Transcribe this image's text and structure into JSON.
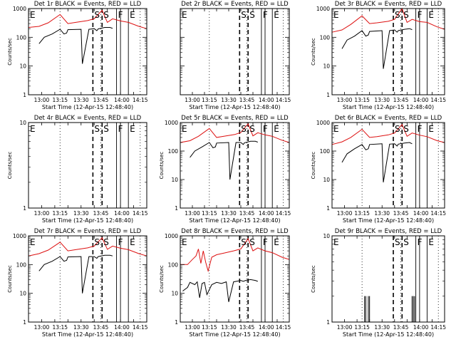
{
  "colors": {
    "background": "#ffffff",
    "axes": "#000000",
    "events": "#000000",
    "lld": "#dd1111",
    "text": "#000000"
  },
  "chart_data": [
    {
      "type": "line",
      "yscale": "log",
      "ylim": [
        1,
        1000
      ],
      "xlim": [
        0,
        90
      ],
      "title": "Det 1r BLACK = Events, RED = LLD",
      "xlabel": "Start Time (12-Apr-15 12:48:40)",
      "ylabel": "Counts/sec",
      "xtick_labels": [
        "13:00",
        "13:15",
        "13:30",
        "13:45",
        "14:00",
        "14:15"
      ],
      "ytick_labels": [
        "1",
        "10",
        "100",
        "1000"
      ],
      "markers": [
        "E",
        "S",
        "S",
        "F",
        "E"
      ],
      "series": [
        {
          "label_role": "LLD",
          "color": "#dd1111",
          "x": [
            0,
            8,
            15,
            24,
            30,
            36,
            45,
            50,
            56,
            60,
            64,
            70,
            76,
            84,
            90
          ],
          "y": [
            220,
            240,
            320,
            620,
            300,
            330,
            380,
            440,
            870,
            330,
            440,
            370,
            330,
            240,
            200
          ]
        },
        {
          "label_role": "Events",
          "color": "#000000",
          "x": [
            8,
            12,
            18,
            24,
            27,
            29,
            30,
            40,
            41,
            46,
            50,
            52,
            53,
            58,
            62,
            64
          ],
          "y": [
            60,
            100,
            130,
            190,
            130,
            140,
            185,
            190,
            12,
            190,
            200,
            170,
            195,
            220,
            220,
            205
          ]
        }
      ]
    },
    {
      "type": "line",
      "yscale": "log",
      "ylim": [
        1,
        1000
      ],
      "xlim": [
        0,
        90
      ],
      "title": "Det 2r BLACK = Events, RED = LLD",
      "xlabel": "Start Time (12-Apr-15 12:48:40)",
      "ylabel": "",
      "xtick_labels": [
        "13:00",
        "13:15",
        "13:30",
        "13:45",
        "14:00",
        "14:15"
      ],
      "ytick_labels": [],
      "markers": [
        "E",
        "S",
        "S",
        "F",
        "E"
      ],
      "series": []
    },
    {
      "type": "line",
      "yscale": "log",
      "ylim": [
        1,
        1000
      ],
      "xlim": [
        0,
        90
      ],
      "title": "Det 3r BLACK = Events, RED = LLD",
      "xlabel": "Start Time (12-Apr-15 12:48:40)",
      "ylabel": "Counts/sec",
      "xtick_labels": [
        "13:00",
        "13:15",
        "13:30",
        "13:45",
        "14:00",
        "14:15"
      ],
      "ytick_labels": [
        "1",
        "10",
        "100",
        "1000"
      ],
      "markers": [
        "E",
        "S",
        "S",
        "F",
        "E"
      ],
      "series": [
        {
          "label_role": "LLD",
          "color": "#dd1111",
          "x": [
            0,
            8,
            15,
            24,
            30,
            36,
            45,
            50,
            56,
            60,
            64,
            70,
            76,
            84,
            90
          ],
          "y": [
            150,
            180,
            280,
            560,
            300,
            320,
            360,
            420,
            1000,
            330,
            420,
            350,
            330,
            230,
            190
          ]
        },
        {
          "label_role": "Events",
          "color": "#000000",
          "x": [
            8,
            12,
            18,
            24,
            27,
            29,
            30,
            40,
            41,
            46,
            50,
            52,
            53,
            58,
            62,
            64
          ],
          "y": [
            40,
            80,
            110,
            170,
            110,
            120,
            160,
            170,
            8,
            170,
            180,
            150,
            170,
            190,
            200,
            185
          ]
        }
      ]
    },
    {
      "type": "line",
      "yscale": "log",
      "ylim": [
        1,
        10
      ],
      "xlim": [
        0,
        90
      ],
      "title": "Det 4r BLACK = Events, RED = LLD",
      "xlabel": "Start Time (12-Apr-15 12:48:40)",
      "ylabel": "Counts/sec",
      "xtick_labels": [
        "13:00",
        "13:15",
        "13:30",
        "13:45",
        "14:00",
        "14:15"
      ],
      "ytick_labels": [
        "1",
        "10"
      ],
      "markers": [
        "E",
        "S",
        "S",
        "F",
        "E"
      ],
      "series": []
    },
    {
      "type": "line",
      "yscale": "log",
      "ylim": [
        1,
        1000
      ],
      "xlim": [
        0,
        90
      ],
      "title": "Det 5r BLACK = Events, RED = LLD",
      "xlabel": "Start Time (12-Apr-15 12:48:40)",
      "ylabel": "Counts/sec",
      "xtick_labels": [
        "13:00",
        "13:15",
        "13:30",
        "13:45",
        "14:00",
        "14:15"
      ],
      "ytick_labels": [
        "1",
        "10",
        "100",
        "1000"
      ],
      "markers": [
        "E",
        "S",
        "S",
        "F",
        "E"
      ],
      "series": [
        {
          "label_role": "LLD",
          "color": "#dd1111",
          "x": [
            0,
            8,
            15,
            24,
            30,
            36,
            45,
            50,
            56,
            60,
            64,
            70,
            76,
            84,
            90
          ],
          "y": [
            200,
            230,
            330,
            620,
            300,
            330,
            380,
            450,
            900,
            340,
            440,
            370,
            330,
            240,
            200
          ]
        },
        {
          "label_role": "Events",
          "color": "#000000",
          "x": [
            8,
            12,
            18,
            24,
            27,
            29,
            30,
            40,
            41,
            46,
            50,
            52,
            53,
            58,
            62,
            64
          ],
          "y": [
            60,
            100,
            140,
            200,
            130,
            140,
            190,
            200,
            10,
            200,
            200,
            170,
            195,
            220,
            220,
            205
          ]
        }
      ]
    },
    {
      "type": "line",
      "yscale": "log",
      "ylim": [
        1,
        1000
      ],
      "xlim": [
        0,
        90
      ],
      "title": "Det 6r BLACK = Events, RED = LLD",
      "xlabel": "Start Time (12-Apr-15 12:48:40)",
      "ylabel": "Counts/sec",
      "xtick_labels": [
        "13:00",
        "13:15",
        "13:30",
        "13:45",
        "14:00",
        "14:15"
      ],
      "ytick_labels": [
        "1",
        "10",
        "100",
        "1000"
      ],
      "markers": [
        "E",
        "S",
        "S",
        "F",
        "E"
      ],
      "series": [
        {
          "label_role": "LLD",
          "color": "#dd1111",
          "x": [
            0,
            8,
            15,
            24,
            30,
            36,
            45,
            50,
            56,
            60,
            64,
            70,
            76,
            84,
            90
          ],
          "y": [
            170,
            210,
            300,
            580,
            300,
            320,
            370,
            430,
            850,
            330,
            430,
            360,
            320,
            230,
            200
          ]
        },
        {
          "label_role": "Events",
          "color": "#000000",
          "x": [
            8,
            12,
            18,
            24,
            27,
            29,
            30,
            40,
            41,
            46,
            50,
            52,
            53,
            58,
            62,
            64
          ],
          "y": [
            40,
            80,
            120,
            170,
            110,
            120,
            170,
            180,
            8,
            175,
            180,
            150,
            175,
            190,
            200,
            180
          ]
        }
      ]
    },
    {
      "type": "line",
      "yscale": "log",
      "ylim": [
        1,
        1000
      ],
      "xlim": [
        0,
        90
      ],
      "title": "Det 7r BLACK = Events, RED = LLD",
      "xlabel": "Start Time (12-Apr-15 12:48:40)",
      "ylabel": "Counts/sec",
      "xtick_labels": [
        "13:00",
        "13:15",
        "13:30",
        "13:45",
        "14:00",
        "14:15"
      ],
      "ytick_labels": [
        "1",
        "10",
        "100",
        "1000"
      ],
      "markers": [
        "E",
        "S",
        "S",
        "F",
        "E"
      ],
      "series": [
        {
          "label_role": "LLD",
          "color": "#dd1111",
          "x": [
            0,
            8,
            15,
            24,
            30,
            36,
            45,
            50,
            56,
            60,
            64,
            70,
            76,
            84,
            90
          ],
          "y": [
            200,
            240,
            320,
            600,
            300,
            330,
            380,
            440,
            850,
            340,
            440,
            370,
            330,
            240,
            200
          ]
        },
        {
          "label_role": "Events",
          "color": "#000000",
          "x": [
            8,
            12,
            18,
            24,
            27,
            29,
            30,
            40,
            41,
            46,
            50,
            52,
            53,
            58,
            62,
            64
          ],
          "y": [
            60,
            100,
            130,
            190,
            130,
            140,
            185,
            190,
            10,
            190,
            190,
            165,
            190,
            210,
            210,
            200
          ]
        }
      ]
    },
    {
      "type": "line",
      "yscale": "log",
      "ylim": [
        1,
        1000
      ],
      "xlim": [
        0,
        90
      ],
      "title": "Det 8r BLACK = Events, RED = LLD",
      "xlabel": "Start Time (12-Apr-15 12:48:40)",
      "ylabel": "Counts/sec",
      "xtick_labels": [
        "13:00",
        "13:15",
        "13:30",
        "13:45",
        "14:00",
        "14:15"
      ],
      "ytick_labels": [
        "1",
        "10",
        "100",
        "1000"
      ],
      "markers": [
        "E",
        "S",
        "S",
        "F",
        "E"
      ],
      "series": [
        {
          "label_role": "LLD",
          "color": "#dd1111",
          "x": [
            0,
            6,
            10,
            13,
            15,
            17,
            19,
            21,
            23,
            26,
            30,
            36,
            44,
            50,
            56,
            60,
            64,
            70,
            76,
            84,
            90
          ],
          "y": [
            100,
            100,
            150,
            200,
            350,
            110,
            300,
            120,
            60,
            180,
            220,
            250,
            300,
            350,
            800,
            300,
            380,
            300,
            260,
            180,
            150
          ]
        },
        {
          "label_role": "Events",
          "color": "#000000",
          "x": [
            2,
            6,
            8,
            12,
            14,
            16,
            18,
            20,
            22,
            26,
            30,
            34,
            38,
            40,
            44,
            50,
            52,
            54,
            58,
            62,
            64
          ],
          "y": [
            12,
            16,
            24,
            20,
            25,
            7,
            22,
            24,
            9,
            20,
            24,
            22,
            25,
            5,
            25,
            28,
            26,
            28,
            30,
            28,
            26
          ]
        }
      ]
    },
    {
      "type": "line",
      "yscale": "log",
      "ylim": [
        1,
        10
      ],
      "xlim": [
        0,
        90
      ],
      "title": "Det 9r BLACK = Events, RED = LLD",
      "xlabel": "Start Time (12-Apr-15 12:48:40)",
      "ylabel": "Counts/sec",
      "xtick_labels": [
        "13:00",
        "13:15",
        "13:30",
        "13:45",
        "14:00",
        "14:15"
      ],
      "ytick_labels": [
        "1",
        "10"
      ],
      "markers": [
        "E",
        "S",
        "S",
        "F",
        "E"
      ],
      "series": [
        {
          "label_role": "Events",
          "color": "#000000",
          "kind": "spikes",
          "x": [
            26,
            27,
            29,
            30,
            64,
            65,
            66
          ],
          "y": [
            2,
            2,
            2,
            2,
            2,
            2,
            2
          ]
        }
      ]
    }
  ]
}
